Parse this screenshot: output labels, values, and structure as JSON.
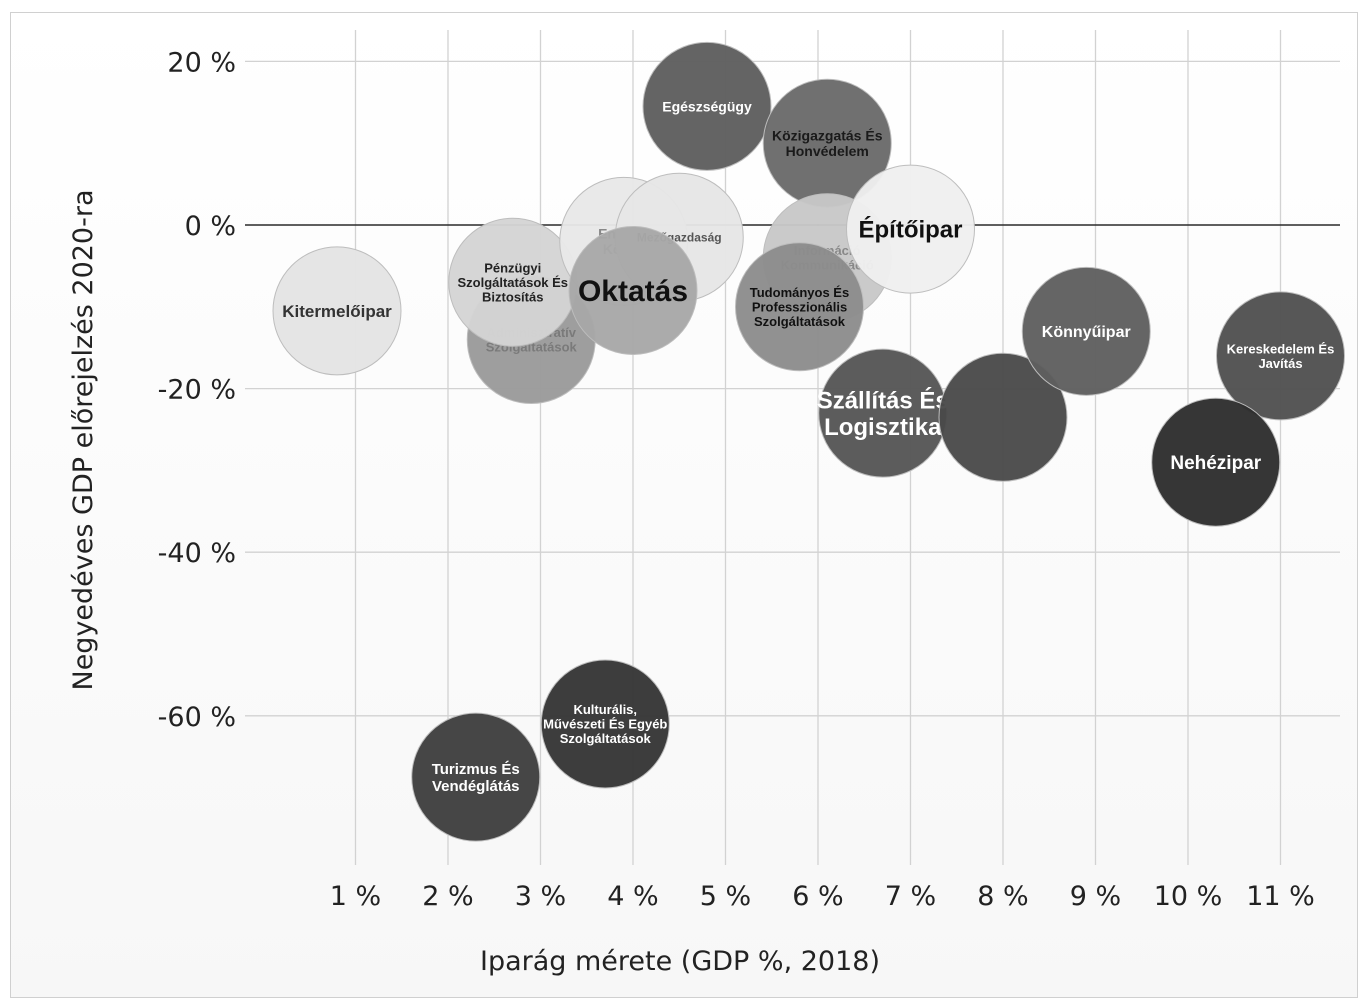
{
  "chart_data": {
    "type": "scatter",
    "title": "",
    "xlabel": "Iparág mérete (GDP %, 2018)",
    "ylabel": "Negyedéves GDP előrejelzés 2020-ra",
    "xlim": [
      0,
      11.4
    ],
    "ylim": [
      -80,
      25
    ],
    "grid": true,
    "x_ticks": [
      {
        "value": 1,
        "label": "1 %"
      },
      {
        "value": 2,
        "label": "2 %"
      },
      {
        "value": 3,
        "label": "3 %"
      },
      {
        "value": 4,
        "label": "4 %"
      },
      {
        "value": 5,
        "label": "5 %"
      },
      {
        "value": 6,
        "label": "6 %"
      },
      {
        "value": 7,
        "label": "7 %"
      },
      {
        "value": 8,
        "label": "8 %"
      },
      {
        "value": 9,
        "label": "9 %"
      },
      {
        "value": 10,
        "label": "10 %"
      },
      {
        "value": 11,
        "label": "11 %"
      }
    ],
    "y_ticks": [
      {
        "value": 20,
        "label": "20 %"
      },
      {
        "value": 0,
        "label": "0 %"
      },
      {
        "value": -20,
        "label": "-20 %"
      },
      {
        "value": -40,
        "label": "-40 %"
      },
      {
        "value": -60,
        "label": "-60 %"
      }
    ],
    "points": [
      {
        "x": 0.8,
        "y": -10.5,
        "lines": [
          "Kitermelőipar"
        ],
        "color": "#e4e4e4",
        "text": "#333333",
        "size": 17
      },
      {
        "x": 2.9,
        "y": -14,
        "lines": [
          "Adminisztratív",
          "Szolgáltatások"
        ],
        "color": "#9a9a9a",
        "text": "#7a7a7a",
        "size": 13
      },
      {
        "x": 2.7,
        "y": -7,
        "lines": [
          "Pénzügyi",
          "Szolgáltatások És",
          "Biztosítás"
        ],
        "color": "#d4d4d4",
        "text": "#222222",
        "size": 13
      },
      {
        "x": 3.9,
        "y": -2,
        "lines": [
          "Energia",
          "Közm."
        ],
        "color": "#e8e8e8",
        "text": "#888888",
        "size": 14
      },
      {
        "x": 4.5,
        "y": -1.5,
        "lines": [
          "Mezőgazdaság"
        ],
        "color": "#e6e6e6",
        "text": "#555555",
        "size": 12
      },
      {
        "x": 4.0,
        "y": -8,
        "lines": [
          "Oktatás"
        ],
        "color": "#a8a8a8",
        "text": "#111111",
        "size": 30
      },
      {
        "x": 4.8,
        "y": 14.5,
        "lines": [
          "Egészségügy"
        ],
        "color": "#5e5e5e",
        "text": "#ffffff",
        "size": 14
      },
      {
        "x": 6.1,
        "y": 10,
        "lines": [
          "Közigazgatás És",
          "Honvédelem"
        ],
        "color": "#6a6a6a",
        "text": "#1a1a1a",
        "size": 14
      },
      {
        "x": 6.1,
        "y": -4,
        "lines": [
          "Információ",
          "Kommunikáció"
        ],
        "color": "#c8c8c8",
        "text": "#888888",
        "size": 13
      },
      {
        "x": 5.8,
        "y": -10,
        "lines": [
          "Tudományos És",
          "Professzionális",
          "Szolgáltatások"
        ],
        "color": "#8c8c8c",
        "text": "#111111",
        "size": 13
      },
      {
        "x": 7.0,
        "y": -0.5,
        "lines": [
          "Építőipar"
        ],
        "color": "#efefef",
        "text": "#111111",
        "size": 24
      },
      {
        "x": 6.7,
        "y": -23,
        "lines": [
          "Szállítás És",
          "Logisztika"
        ],
        "color": "#555555",
        "text": "#ffffff",
        "size": 24
      },
      {
        "x": 8.0,
        "y": -23.5,
        "lines": [],
        "color": "#4a4a4a",
        "text": "#ffffff",
        "size": 14
      },
      {
        "x": 8.9,
        "y": -13,
        "lines": [
          "Könnyűipar"
        ],
        "color": "#5f5f5f",
        "text": "#ffffff",
        "size": 16
      },
      {
        "x": 11.0,
        "y": -16,
        "lines": [
          "Kereskedelem És",
          "Javítás"
        ],
        "color": "#505050",
        "text": "#ffffff",
        "size": 13
      },
      {
        "x": 10.3,
        "y": -29,
        "lines": [
          "Nehézipar"
        ],
        "color": "#2e2e2e",
        "text": "#ffffff",
        "size": 19
      },
      {
        "x": 3.7,
        "y": -61,
        "lines": [
          "Kulturális,",
          "Művészeti És Egyéb",
          "Szolgáltatások"
        ],
        "color": "#353535",
        "text": "#ffffff",
        "size": 13
      },
      {
        "x": 2.3,
        "y": -67.5,
        "lines": [
          "Turizmus És",
          "Vendéglátás"
        ],
        "color": "#3e3e3e",
        "text": "#ffffff",
        "size": 15
      }
    ]
  }
}
